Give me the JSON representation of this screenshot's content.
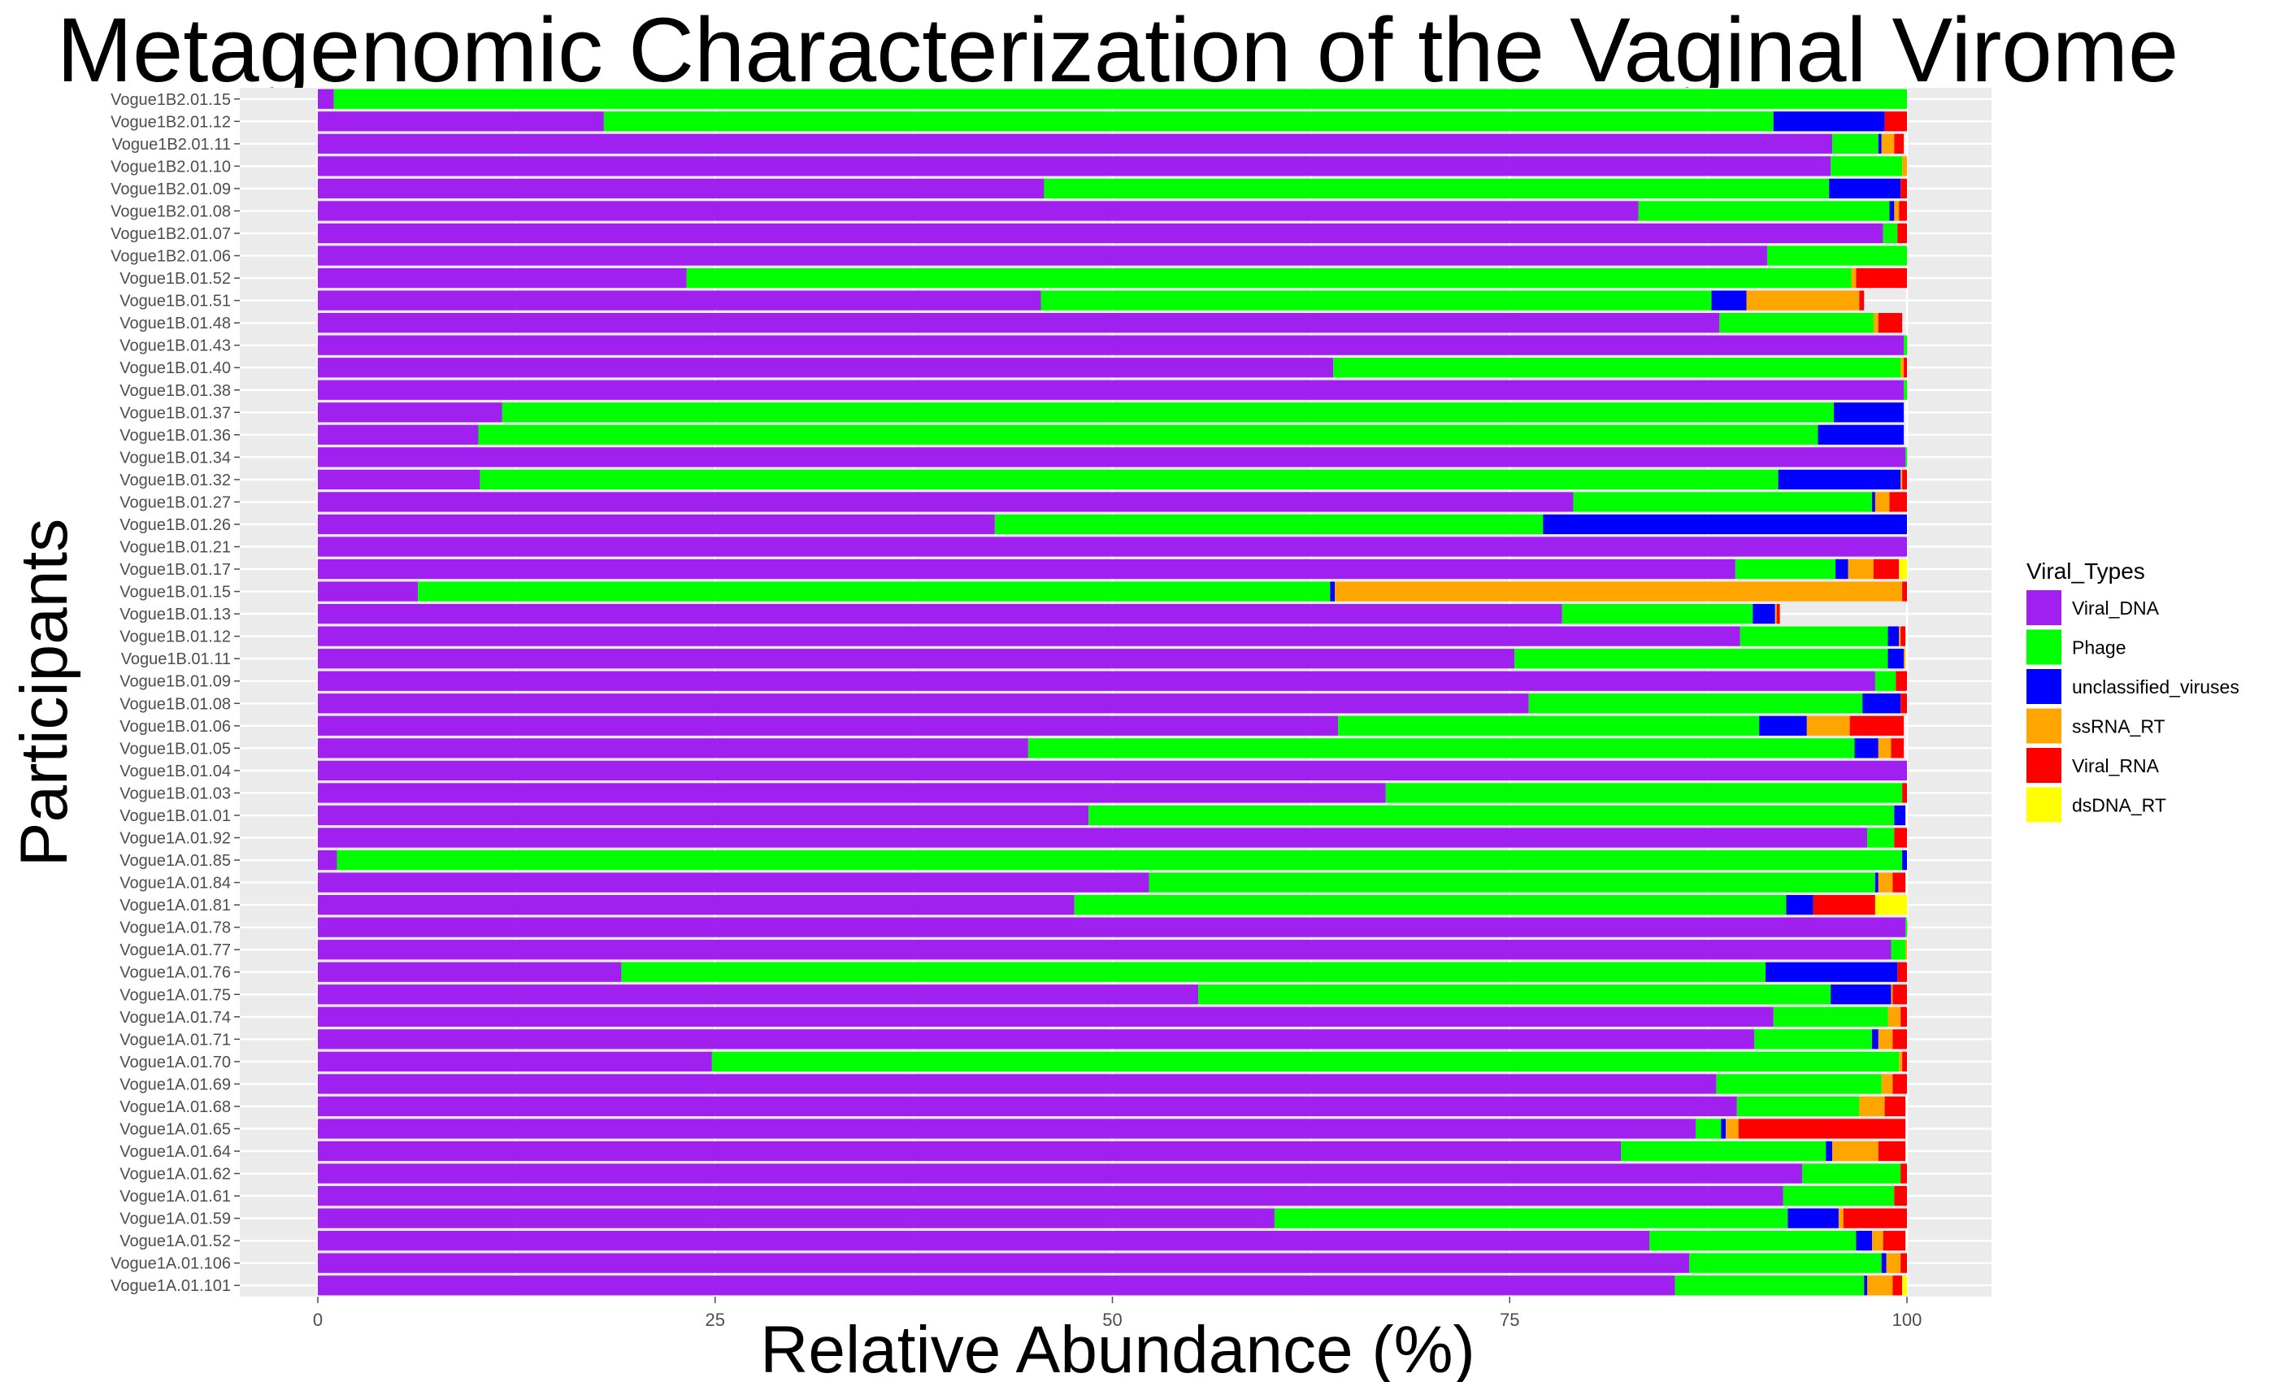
{
  "chart_data": {
    "type": "bar",
    "orientation": "horizontal",
    "stacked": true,
    "title": "Metagenomic Characterization of the Vaginal Virome",
    "xlabel": "Relative Abundance (%)",
    "ylabel": "Participants",
    "xlim": [
      0,
      100
    ],
    "xticks": [
      "0",
      "25",
      "50",
      "75",
      "100"
    ],
    "grid": true,
    "legend": {
      "title": "Viral_Types",
      "position": "right"
    },
    "categories": [
      "Vogue1B2.01.15",
      "Vogue1B2.01.12",
      "Vogue1B2.01.11",
      "Vogue1B2.01.10",
      "Vogue1B2.01.09",
      "Vogue1B2.01.08",
      "Vogue1B2.01.07",
      "Vogue1B2.01.06",
      "Vogue1B.01.52",
      "Vogue1B.01.51",
      "Vogue1B.01.48",
      "Vogue1B.01.43",
      "Vogue1B.01.40",
      "Vogue1B.01.38",
      "Vogue1B.01.37",
      "Vogue1B.01.36",
      "Vogue1B.01.34",
      "Vogue1B.01.32",
      "Vogue1B.01.27",
      "Vogue1B.01.26",
      "Vogue1B.01.21",
      "Vogue1B.01.17",
      "Vogue1B.01.15",
      "Vogue1B.01.13",
      "Vogue1B.01.12",
      "Vogue1B.01.11",
      "Vogue1B.01.09",
      "Vogue1B.01.08",
      "Vogue1B.01.06",
      "Vogue1B.01.05",
      "Vogue1B.01.04",
      "Vogue1B.01.03",
      "Vogue1B.01.01",
      "Vogue1A.01.92",
      "Vogue1A.01.85",
      "Vogue1A.01.84",
      "Vogue1A.01.81",
      "Vogue1A.01.78",
      "Vogue1A.01.77",
      "Vogue1A.01.76",
      "Vogue1A.01.75",
      "Vogue1A.01.74",
      "Vogue1A.01.71",
      "Vogue1A.01.70",
      "Vogue1A.01.69",
      "Vogue1A.01.68",
      "Vogue1A.01.65",
      "Vogue1A.01.64",
      "Vogue1A.01.62",
      "Vogue1A.01.61",
      "Vogue1A.01.59",
      "Vogue1A.01.52",
      "Vogue1A.01.106",
      "Vogue1A.01.101"
    ],
    "series": [
      {
        "name": "Viral_DNA",
        "color": "#A020F0",
        "values": [
          1,
          18,
          95.3,
          95.2,
          45.7,
          83.1,
          98.5,
          91.2,
          23.2,
          45.5,
          88.2,
          99.8,
          63.9,
          99.8,
          11.6,
          10.1,
          99.9,
          10.2,
          79,
          42.6,
          100,
          89.2,
          6.3,
          78.3,
          89.5,
          75.3,
          98,
          76.2,
          64.2,
          44.7,
          100,
          67.2,
          48.5,
          97.5,
          1.2,
          52.3,
          47.6,
          99.9,
          99,
          19.1,
          55.4,
          91.6,
          90.4,
          24.8,
          88,
          89.3,
          86.7,
          82,
          93.4,
          92.2,
          60.2,
          83.8,
          86.3,
          85.4
        ]
      },
      {
        "name": "Phage",
        "color": "#00FF00",
        "values": [
          99,
          73.6,
          2.9,
          4.5,
          49.4,
          15.8,
          0.9,
          8.8,
          73.3,
          42.2,
          9.7,
          0.2,
          35.7,
          0.2,
          83.8,
          84.3,
          0.1,
          81.7,
          18.8,
          34.5,
          0,
          6.3,
          57.4,
          12,
          9.3,
          23.5,
          1.3,
          21,
          26.5,
          52,
          0,
          32.5,
          50.7,
          1.7,
          98.5,
          45.7,
          44.8,
          0.1,
          0.9,
          72,
          39.8,
          7.2,
          7.4,
          74.7,
          10.4,
          7.7,
          1.6,
          12.9,
          6.2,
          7,
          32.3,
          13,
          12.1,
          11.9
        ]
      },
      {
        "name": "unclassified_viruses",
        "color": "#0000FF",
        "values": [
          0,
          7,
          0.2,
          0,
          4.5,
          0.3,
          0,
          0,
          0,
          2.2,
          0,
          0,
          0,
          0,
          4.4,
          5.4,
          0,
          7.7,
          0.2,
          22.9,
          0,
          0.8,
          0.3,
          1.4,
          0.7,
          1,
          0,
          2.4,
          3,
          1.5,
          0,
          0,
          0.7,
          0,
          0.3,
          0.2,
          1.7,
          0,
          0,
          8.3,
          3.8,
          0,
          0.4,
          0,
          0,
          0,
          0.3,
          0.4,
          0,
          0,
          3.2,
          1,
          0.3,
          0.2
        ]
      },
      {
        "name": "ssRNA_RT",
        "color": "#FFA500",
        "values": [
          0,
          0,
          0.8,
          0.3,
          0,
          0.3,
          0,
          0,
          0.3,
          7.1,
          0.3,
          0,
          0.2,
          0,
          0,
          0,
          0,
          0.1,
          0.9,
          0,
          0,
          1.6,
          35.7,
          0.1,
          0.1,
          0.1,
          0,
          0,
          2.7,
          0.8,
          0,
          0,
          0,
          0,
          0,
          0.9,
          0,
          0,
          0.1,
          0,
          0.1,
          0.8,
          0.9,
          0.2,
          0.7,
          1.6,
          0.8,
          2.9,
          0,
          0,
          0.3,
          0.7,
          0.9,
          1.6
        ]
      },
      {
        "name": "Viral_RNA",
        "color": "#FF0000",
        "values": [
          0,
          1.4,
          0.6,
          0,
          0.4,
          0.5,
          0.6,
          0,
          3.2,
          0.3,
          1.5,
          0,
          0.2,
          0,
          0,
          0,
          0,
          0.3,
          1.1,
          0,
          0,
          1.6,
          0.3,
          0.2,
          0.3,
          0,
          0.7,
          0.4,
          3.4,
          0.8,
          0,
          0.3,
          0,
          0.8,
          0,
          0.8,
          3.9,
          0,
          0,
          0.6,
          0.9,
          0.4,
          0.9,
          0.3,
          0.9,
          1.3,
          10.5,
          1.7,
          0.4,
          0.8,
          4,
          1.4,
          0.4,
          0.6
        ]
      },
      {
        "name": "dsDNA_RT",
        "color": "#FFFF00",
        "values": [
          0,
          0,
          0,
          0,
          0,
          0,
          0,
          0,
          0,
          0,
          0,
          0,
          0,
          0,
          0,
          0,
          0,
          0,
          0,
          0,
          0,
          0.5,
          0,
          0,
          0,
          0,
          0,
          0,
          0,
          0,
          0,
          0,
          0,
          0,
          0,
          0,
          2,
          0,
          0,
          0,
          0,
          0,
          0,
          0,
          0,
          0,
          0,
          0,
          0,
          0,
          0,
          0,
          0,
          0.3
        ]
      }
    ]
  }
}
